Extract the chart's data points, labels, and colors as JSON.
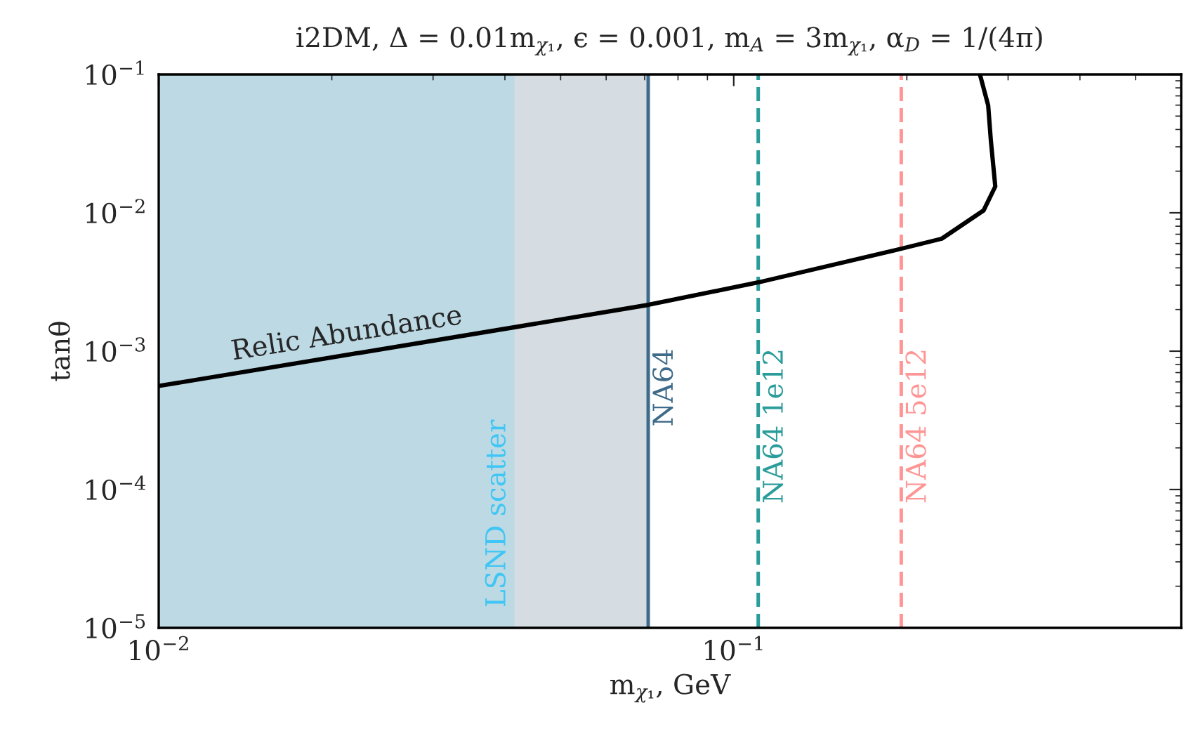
{
  "chart_data": {
    "type": "line",
    "title": "i2DM, Δ = 0.01m$_{χ₁}$, ϵ = 0.001, m$_{A}$ = 3m$_{χ₁}$, α$_{D}$ = 1/(4π)",
    "xlabel": "m$_{χ₁}$, GeV",
    "ylabel": "tanθ",
    "log": "xy",
    "xlim": [
      0.01,
      0.6
    ],
    "ylim": [
      1e-05,
      0.1
    ],
    "xticks": [
      {
        "value": 0.01,
        "label": "10$^{−2}$"
      },
      {
        "value": 0.1,
        "label": "10$^{−1}$"
      }
    ],
    "yticks": [
      {
        "value": 1e-05,
        "label": "10$^{−5}$"
      },
      {
        "value": 0.0001,
        "label": "10$^{−4}$"
      },
      {
        "value": 0.001,
        "label": "10$^{−3}$"
      },
      {
        "value": 0.01,
        "label": "10$^{−2}$"
      },
      {
        "value": 0.1,
        "label": "10$^{−1}$"
      }
    ],
    "series": [
      {
        "color": "#000000",
        "x": [
          0.01,
          0.0416,
          0.071,
          0.1103,
          0.1956,
          0.23,
          0.272,
          0.285,
          0.28,
          0.277,
          0.268
        ],
        "values": [
          0.00056,
          0.00149,
          0.00216,
          0.00314,
          0.0055,
          0.0065,
          0.0104,
          0.0155,
          0.0333,
          0.0598,
          0.1
        ]
      }
    ],
    "bands": [
      {
        "axis": "x",
        "from": 0.01,
        "to": 0.0416,
        "label": "LSND scatter",
        "color": "#bcd9e4"
      },
      {
        "axis": "x",
        "from": 0.0416,
        "to": 0.071,
        "label": null,
        "color": "#d5dde3"
      }
    ],
    "ref_lines": [
      {
        "axis": "x",
        "value": 0.071,
        "label": "NA64",
        "color": "#3f6b8a",
        "line_style": "solid"
      },
      {
        "axis": "x",
        "value": 0.1103,
        "label": "NA64 1e12",
        "color": "#2a9d9a",
        "line_style": "dashed"
      },
      {
        "axis": "x",
        "value": 0.1956,
        "label": "NA64 5e12",
        "color": "#ff9696",
        "line_style": "dashed"
      }
    ],
    "annotations": [
      {
        "text": "Relic Abundance",
        "x": 0.0135,
        "y": 0.00069
      }
    ],
    "grid": false,
    "legend": false
  }
}
